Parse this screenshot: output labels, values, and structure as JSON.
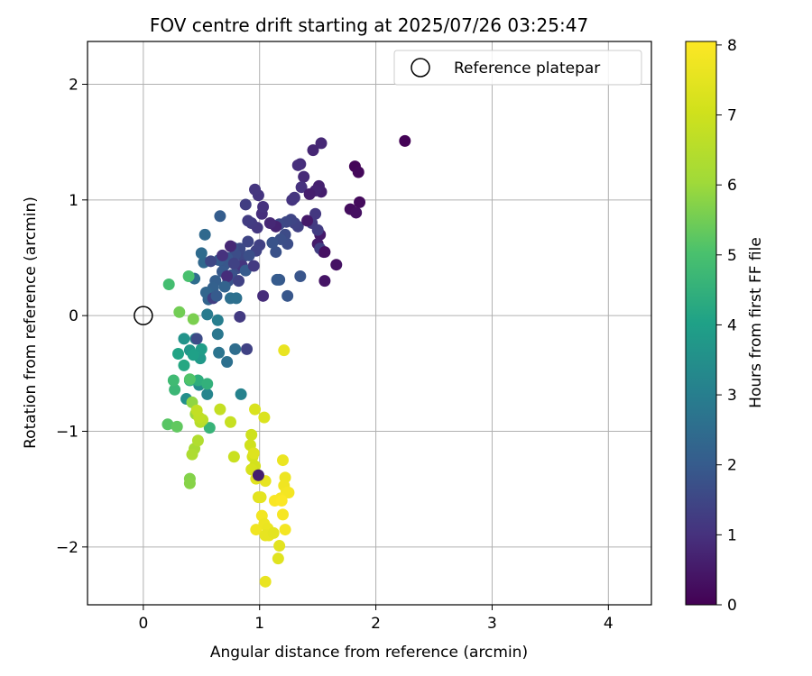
{
  "chart_data": {
    "type": "scatter",
    "title": "FOV centre drift starting at 2025/07/26 03:25:47",
    "xlabel": "Angular distance from reference (arcmin)",
    "ylabel": "Rotation from reference (arcmin)",
    "xlim": [
      -0.48,
      4.37
    ],
    "ylim": [
      -2.5,
      2.37
    ],
    "x_ticks": [
      0,
      1,
      2,
      3,
      4
    ],
    "x_tick_labels": [
      "0",
      "1",
      "2",
      "3",
      "4"
    ],
    "y_ticks": [
      -2,
      -1,
      0,
      1,
      2
    ],
    "y_tick_labels": [
      "−2",
      "−1",
      "0",
      "1",
      "2"
    ],
    "grid": true,
    "legend": {
      "position": "top-right",
      "entries": [
        "Reference platepar"
      ]
    },
    "reference_point": {
      "x": 0,
      "y": 0,
      "label": "Reference platepar"
    },
    "colorbar": {
      "label": "Hours from first FF file",
      "min": 0,
      "max": 8.05,
      "ticks": [
        0,
        1,
        2,
        3,
        4,
        5,
        6,
        7,
        8
      ],
      "tick_labels": [
        "0",
        "1",
        "2",
        "3",
        "4",
        "5",
        "6",
        "7",
        "8"
      ],
      "colormap": "viridis"
    },
    "points": [
      [
        2.25,
        1.51,
        0.05
      ],
      [
        1.82,
        1.29,
        0.1
      ],
      [
        1.85,
        1.24,
        0.15
      ],
      [
        1.86,
        0.98,
        0.2
      ],
      [
        1.78,
        0.92,
        0.25
      ],
      [
        1.83,
        0.89,
        0.3
      ],
      [
        1.66,
        0.44,
        0.35
      ],
      [
        1.56,
        0.3,
        0.4
      ],
      [
        1.55,
        0.55,
        0.45
      ],
      [
        1.52,
        0.7,
        0.5
      ],
      [
        1.5,
        0.62,
        0.55
      ],
      [
        1.53,
        1.07,
        0.6
      ],
      [
        1.51,
        1.12,
        0.65
      ],
      [
        1.48,
        1.08,
        0.7
      ],
      [
        1.46,
        1.43,
        0.75
      ],
      [
        1.53,
        1.49,
        0.8
      ],
      [
        1.38,
        1.2,
        0.85
      ],
      [
        1.35,
        1.31,
        0.9
      ],
      [
        1.33,
        1.3,
        0.95
      ],
      [
        1.36,
        1.11,
        1.0
      ],
      [
        1.28,
        1.0,
        1.05
      ],
      [
        1.3,
        1.02,
        1.1
      ],
      [
        1.48,
        0.88,
        1.15
      ],
      [
        1.45,
        0.8,
        1.2
      ],
      [
        1.5,
        0.74,
        1.25
      ],
      [
        1.52,
        0.58,
        1.3
      ],
      [
        1.33,
        0.77,
        1.35
      ],
      [
        1.3,
        0.8,
        1.4
      ],
      [
        1.27,
        0.83,
        1.45
      ],
      [
        1.23,
        0.81,
        1.5
      ],
      [
        1.17,
        0.79,
        1.55
      ],
      [
        1.22,
        0.7,
        1.6
      ],
      [
        1.24,
        0.62,
        1.65
      ],
      [
        1.18,
        0.66,
        1.7
      ],
      [
        1.14,
        0.55,
        1.75
      ],
      [
        1.11,
        0.63,
        1.8
      ],
      [
        1.35,
        0.34,
        1.85
      ],
      [
        1.24,
        0.17,
        1.9
      ],
      [
        1.17,
        0.31,
        1.95
      ],
      [
        1.15,
        0.31,
        2.0
      ],
      [
        1.03,
        0.17,
        0.9
      ],
      [
        1.02,
        0.88,
        0.95
      ],
      [
        1.03,
        0.94,
        1.0
      ],
      [
        0.99,
        1.04,
        1.05
      ],
      [
        0.96,
        1.09,
        1.1
      ],
      [
        0.98,
        0.76,
        1.15
      ],
      [
        0.93,
        0.8,
        1.2
      ],
      [
        0.9,
        0.82,
        1.25
      ],
      [
        0.88,
        0.96,
        1.3
      ],
      [
        1.0,
        0.61,
        1.35
      ],
      [
        0.97,
        0.56,
        1.4
      ],
      [
        0.9,
        0.64,
        1.45
      ],
      [
        0.86,
        0.51,
        1.5
      ],
      [
        0.83,
        0.58,
        1.55
      ],
      [
        0.81,
        0.41,
        1.6
      ],
      [
        0.79,
        0.53,
        1.65
      ],
      [
        0.77,
        0.59,
        1.7
      ],
      [
        0.76,
        0.35,
        1.75
      ],
      [
        0.73,
        0.3,
        1.8
      ],
      [
        0.72,
        0.5,
        1.85
      ],
      [
        0.7,
        0.44,
        1.9
      ],
      [
        0.68,
        0.38,
        1.95
      ],
      [
        0.65,
        0.48,
        2.0
      ],
      [
        0.66,
        0.86,
        2.05
      ],
      [
        0.62,
        0.3,
        2.1
      ],
      [
        0.6,
        0.24,
        2.15
      ],
      [
        0.58,
        0.18,
        2.2
      ],
      [
        0.56,
        0.14,
        2.25
      ],
      [
        0.54,
        0.2,
        2.3
      ],
      [
        0.52,
        0.46,
        2.35
      ],
      [
        0.53,
        0.7,
        2.4
      ],
      [
        0.5,
        0.54,
        2.45
      ],
      [
        0.44,
        0.32,
        2.5
      ],
      [
        0.75,
        0.15,
        2.55
      ],
      [
        0.8,
        0.15,
        2.6
      ],
      [
        0.83,
        -0.01,
        1.2
      ],
      [
        0.89,
        -0.29,
        1.4
      ],
      [
        0.79,
        -0.29,
        2.5
      ],
      [
        0.72,
        -0.4,
        2.6
      ],
      [
        0.65,
        -0.32,
        2.7
      ],
      [
        0.64,
        -0.16,
        2.8
      ],
      [
        0.55,
        0.01,
        2.9
      ],
      [
        0.64,
        -0.04,
        3.0
      ],
      [
        0.84,
        -0.68,
        3.1
      ],
      [
        0.55,
        -0.68,
        3.2
      ],
      [
        0.45,
        -0.2,
        3.3
      ],
      [
        0.48,
        -0.6,
        3.4
      ],
      [
        0.37,
        -0.72,
        3.5
      ],
      [
        0.35,
        -0.2,
        3.6
      ],
      [
        0.4,
        -0.3,
        3.7
      ],
      [
        0.49,
        -0.37,
        3.8
      ],
      [
        0.5,
        -0.29,
        3.9
      ],
      [
        0.43,
        -0.34,
        4.0
      ],
      [
        0.3,
        -0.33,
        4.1
      ],
      [
        0.35,
        -0.43,
        4.2
      ],
      [
        0.4,
        -0.56,
        4.3
      ],
      [
        0.47,
        -0.56,
        4.4
      ],
      [
        0.55,
        -0.59,
        4.5
      ],
      [
        0.57,
        -0.97,
        4.6
      ],
      [
        0.27,
        -0.64,
        4.7
      ],
      [
        0.26,
        -0.56,
        4.8
      ],
      [
        0.22,
        0.27,
        4.9
      ],
      [
        0.39,
        0.34,
        5.0
      ],
      [
        0.4,
        -0.55,
        5.1
      ],
      [
        0.21,
        -0.94,
        5.2
      ],
      [
        0.29,
        -0.96,
        5.3
      ],
      [
        0.31,
        0.03,
        5.5
      ],
      [
        0.43,
        -0.03,
        5.6
      ],
      [
        0.4,
        -1.41,
        5.7
      ],
      [
        0.4,
        -1.45,
        5.75
      ],
      [
        0.42,
        -0.75,
        5.85
      ],
      [
        0.45,
        -0.85,
        6.0
      ],
      [
        0.44,
        -1.15,
        6.2
      ],
      [
        0.42,
        -1.2,
        6.3
      ],
      [
        0.47,
        -1.08,
        6.4
      ],
      [
        0.49,
        -0.92,
        6.5
      ],
      [
        0.51,
        -0.9,
        6.6
      ],
      [
        0.48,
        -0.88,
        6.7
      ],
      [
        0.46,
        -0.82,
        6.75
      ],
      [
        0.66,
        -0.81,
        6.8
      ],
      [
        0.75,
        -0.92,
        6.85
      ],
      [
        0.78,
        -1.22,
        6.9
      ],
      [
        0.93,
        -1.03,
        7.0
      ],
      [
        0.92,
        -1.12,
        7.05
      ],
      [
        0.96,
        -1.3,
        7.1
      ],
      [
        0.94,
        -1.22,
        7.15
      ],
      [
        0.93,
        -1.33,
        7.2
      ],
      [
        0.96,
        -0.81,
        7.25
      ],
      [
        1.04,
        -0.88,
        7.3
      ],
      [
        0.95,
        -1.19,
        7.35
      ],
      [
        0.97,
        -1.41,
        7.4
      ],
      [
        0.99,
        -1.57,
        7.45
      ],
      [
        1.01,
        -1.57,
        7.5
      ],
      [
        1.05,
        -1.43,
        7.55
      ],
      [
        1.21,
        -0.3,
        7.6
      ],
      [
        1.2,
        -1.25,
        7.65
      ],
      [
        1.22,
        -1.4,
        7.7
      ],
      [
        1.21,
        -1.47,
        7.75
      ],
      [
        1.23,
        -1.53,
        7.8
      ],
      [
        1.25,
        -1.53,
        7.85
      ],
      [
        1.18,
        -1.58,
        7.9
      ],
      [
        1.13,
        -1.6,
        7.95
      ],
      [
        1.19,
        -1.6,
        8.0
      ],
      [
        1.2,
        -1.72,
        7.9
      ],
      [
        1.22,
        -1.85,
        7.85
      ],
      [
        1.02,
        -1.73,
        7.8
      ],
      [
        0.97,
        -1.85,
        7.75
      ],
      [
        1.04,
        -1.8,
        7.7
      ],
      [
        1.07,
        -1.84,
        7.65
      ],
      [
        1.08,
        -1.9,
        7.6
      ],
      [
        1.05,
        -1.9,
        7.55
      ],
      [
        1.12,
        -1.88,
        7.5
      ],
      [
        1.17,
        -1.99,
        7.45
      ],
      [
        1.16,
        -2.1,
        7.4
      ],
      [
        1.05,
        -2.3,
        7.6
      ],
      [
        0.99,
        -1.38,
        0.6
      ],
      [
        0.46,
        -0.2,
        1.6
      ],
      [
        0.72,
        0.34,
        0.9
      ],
      [
        0.6,
        0.15,
        1.3
      ],
      [
        0.85,
        0.43,
        1.1
      ],
      [
        0.75,
        0.6,
        0.8
      ],
      [
        0.68,
        0.52,
        1.0
      ],
      [
        0.58,
        0.47,
        1.5
      ],
      [
        0.91,
        0.52,
        1.7
      ],
      [
        0.88,
        0.39,
        2.0
      ],
      [
        0.82,
        0.3,
        1.4
      ],
      [
        0.7,
        0.25,
        2.2
      ],
      [
        0.63,
        0.17,
        2.0
      ],
      [
        1.14,
        0.77,
        0.7
      ],
      [
        1.41,
        0.82,
        0.5
      ],
      [
        1.43,
        1.05,
        0.6
      ],
      [
        1.56,
        0.55,
        0.3
      ],
      [
        1.09,
        0.8,
        0.8
      ],
      [
        0.95,
        0.43,
        1.2
      ],
      [
        0.78,
        0.45,
        1.4
      ]
    ]
  }
}
